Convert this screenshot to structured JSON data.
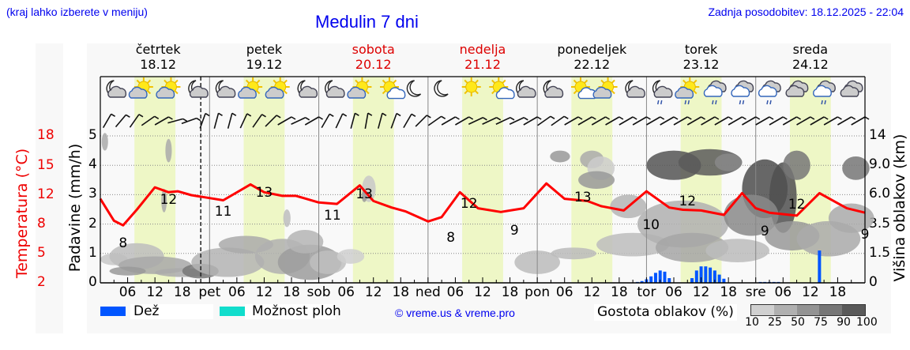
{
  "header": {
    "hint": "(kraj lahko izberete v meniju)",
    "title": "Medulin 7 dni",
    "updated": "Zadnja posodobitev: 18.12.2025 - 22:04"
  },
  "days": [
    {
      "name": "četrtek",
      "date": "18.12",
      "weekend": false,
      "short": ""
    },
    {
      "name": "petek",
      "date": "19.12",
      "weekend": false,
      "short": "pet"
    },
    {
      "name": "sobota",
      "date": "20.12",
      "weekend": true,
      "short": "sob"
    },
    {
      "name": "nedelja",
      "date": "21.12",
      "weekend": true,
      "short": "ned"
    },
    {
      "name": "ponedeljek",
      "date": "22.12",
      "weekend": false,
      "short": "pon"
    },
    {
      "name": "torek",
      "date": "23.12",
      "weekend": false,
      "short": "tor"
    },
    {
      "name": "sreda",
      "date": "24.12",
      "weekend": false,
      "short": "sre"
    }
  ],
  "axes": {
    "temp_label": "Temperatura (°C)",
    "precip_label": "Padavine (mm/h)",
    "cloud_label": "Višina oblakov (km)",
    "temp_ticks": [
      "18",
      "15",
      "12",
      "8",
      "5",
      "2"
    ],
    "precip_ticks": [
      "5",
      "4",
      "3",
      "2",
      "1",
      "0"
    ],
    "cloud_ticks": [
      "14",
      "9.0",
      "6.0",
      "3.5",
      "1.5",
      "0"
    ],
    "hour_ticks": [
      "06",
      "12",
      "18"
    ]
  },
  "legend": {
    "rain": "Dež",
    "rain_color": "#0055ff",
    "showers": "Možnost ploh",
    "showers_color": "#11ddcc",
    "copyright": "© vreme.us & vreme.pro",
    "cloud_density": "Gostota oblakov (%)",
    "cloud_scale": [
      "10",
      "25",
      "50",
      "75",
      "90",
      "100"
    ],
    "cloud_colors": [
      "#d0d0d0",
      "#b0b0b0",
      "#939393",
      "#767676",
      "#595959"
    ]
  },
  "chart_data": {
    "type": "line",
    "title": "Medulin 7 dni",
    "xlabel": "",
    "ylabel": "Temperatura (°C)",
    "x_range": [
      "18.12 00:00",
      "25.12 00:00"
    ],
    "temperature_series": {
      "name": "Temperatura",
      "color": "#ff0000",
      "points_hours": [
        0,
        3,
        5,
        8,
        12,
        15,
        17,
        20,
        24,
        27,
        33,
        36,
        40,
        43,
        48,
        52,
        57,
        60,
        64,
        67,
        72,
        75,
        79,
        83,
        88,
        93,
        98,
        102,
        107,
        110,
        115,
        120,
        125,
        128,
        132,
        137,
        141,
        144,
        147,
        153,
        158,
        164,
        168
      ],
      "values": [
        11.5,
        8.5,
        7.9,
        10.0,
        12.8,
        12.3,
        12.4,
        12.0,
        11.6,
        11.3,
        13.1,
        12.3,
        11.9,
        11.9,
        11.0,
        10.8,
        13.0,
        11.2,
        10.3,
        9.8,
        8.4,
        9.0,
        12.3,
        10.2,
        9.7,
        10.2,
        13.2,
        11.5,
        11.2,
        10.5,
        9.9,
        12.4,
        10.3,
        10.0,
        9.9,
        9.3,
        12.2,
        10.2,
        9.6,
        9.2,
        12.2,
        10.2,
        9.6
      ]
    },
    "temp_labels": [
      {
        "hour": 5,
        "value": 8
      },
      {
        "hour": 15,
        "value": 12
      },
      {
        "hour": 27,
        "value": 11
      },
      {
        "hour": 36,
        "value": 13
      },
      {
        "hour": 51,
        "value": 11
      },
      {
        "hour": 58,
        "value": 13
      },
      {
        "hour": 77,
        "value": 8
      },
      {
        "hour": 81,
        "value": 12
      },
      {
        "hour": 91,
        "value": 9
      },
      {
        "hour": 106,
        "value": 13
      },
      {
        "hour": 121,
        "value": 10
      },
      {
        "hour": 129,
        "value": 12
      },
      {
        "hour": 146,
        "value": 9
      },
      {
        "hour": 153,
        "value": 12
      },
      {
        "hour": 168,
        "value": 9
      }
    ],
    "precipitation_series": {
      "name": "Dež (mm/h)",
      "hours": [
        118,
        119,
        120,
        121,
        122,
        123,
        124,
        125,
        126,
        130,
        131,
        132,
        133,
        134,
        135,
        136,
        137,
        138,
        145,
        146,
        147,
        148,
        149,
        158
      ],
      "values": [
        0.03,
        0.06,
        0.12,
        0.22,
        0.34,
        0.42,
        0.38,
        0.16,
        0.0,
        0.16,
        0.42,
        0.56,
        0.56,
        0.52,
        0.42,
        0.28,
        0.14,
        0.0,
        0.03,
        0.03,
        0.03,
        0.03,
        0.03,
        1.1
      ]
    },
    "precip_ylim": [
      0,
      5
    ],
    "temp_ylim": [
      2,
      18
    ],
    "cloud_height_km_ticks": [
      0,
      1.5,
      3.5,
      6.0,
      9.0,
      14
    ],
    "daylight_hours": [
      7.5,
      16.5
    ],
    "now_marker_hour": 22.07,
    "grid": true
  }
}
